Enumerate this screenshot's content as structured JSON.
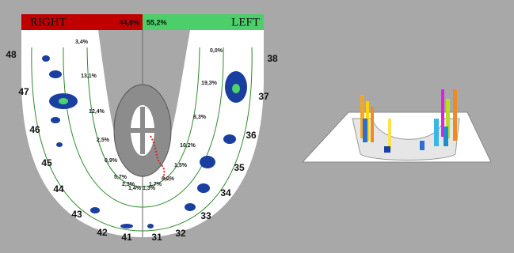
{
  "header": {
    "right_label": "RIGHT",
    "right_percent": "44,8%",
    "left_percent": "55,2%",
    "left_label": "LEFT"
  },
  "teeth": [
    "48",
    "47",
    "46",
    "45",
    "44",
    "43",
    "42",
    "41",
    "31",
    "32",
    "33",
    "34",
    "35",
    "36",
    "37",
    "38"
  ],
  "percentages": [
    "3,4%",
    "13,1%",
    "12,4%",
    "2,5%",
    "0,9%",
    "5,7%",
    "2,3%",
    "1,4%",
    "1,3%",
    "1,7%",
    "6,0%",
    "1,5%",
    "10,2%",
    "8,3%",
    "19,3%",
    "0,0%"
  ]
}
